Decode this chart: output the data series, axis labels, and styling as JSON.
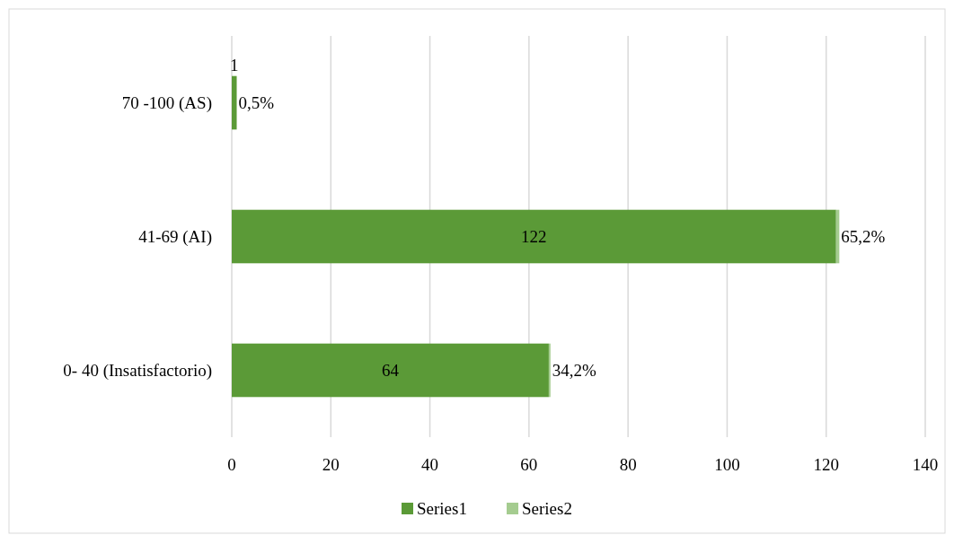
{
  "chart_data": {
    "type": "bar",
    "orientation": "horizontal",
    "stacked": true,
    "categories": [
      "70 -100 (AS)",
      "41-69 (AI)",
      "0- 40 (Insatisfactorio)"
    ],
    "series": [
      {
        "name": "Series1",
        "color": "#5b9a37",
        "values": [
          1,
          122,
          64
        ],
        "value_labels": [
          "1",
          "122",
          "64"
        ]
      },
      {
        "name": "Series2",
        "color": "#a5cc90",
        "values": [
          0.005,
          0.652,
          0.342
        ],
        "value_labels": [
          "0,5%",
          "65,2%",
          "34,2%"
        ]
      }
    ],
    "xlim": [
      0,
      140
    ],
    "xticks": [
      0,
      20,
      40,
      60,
      80,
      100,
      120,
      140
    ],
    "grid": "x",
    "legend": "bottom"
  }
}
